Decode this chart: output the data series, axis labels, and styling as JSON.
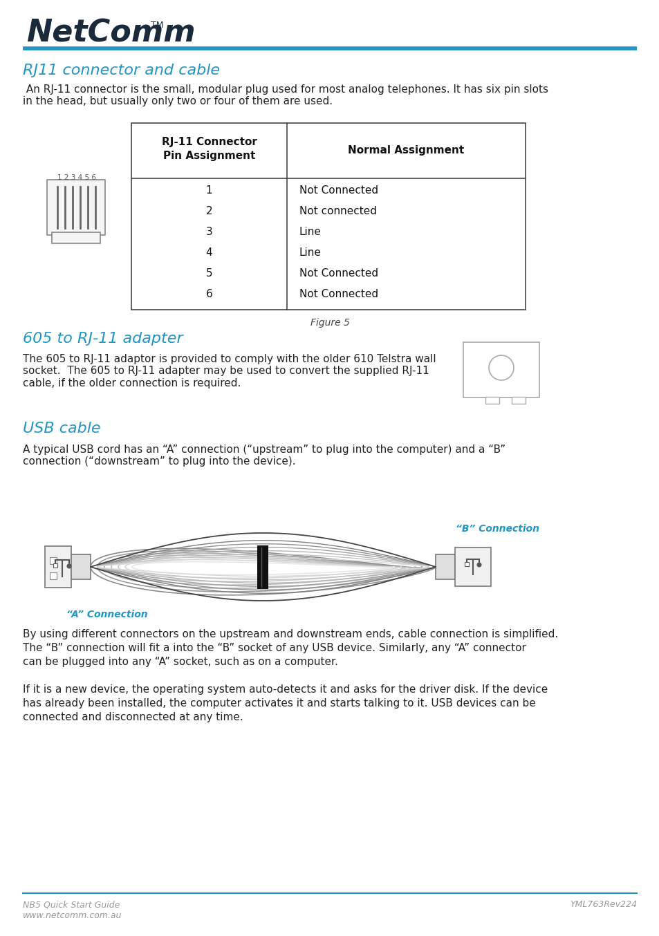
{
  "bg_color": "#ffffff",
  "header_line_color": "#2196C4",
  "logo_color": "#1b2a3a",
  "section1_title": "RJ11 connector and cable",
  "section1_title_color": "#2196C4",
  "section1_body": " An RJ-11 connector is the small, modular plug used for most analog telephones. It has six pin slots\nin the head, but usually only two or four of them are used.",
  "table_header1a": "RJ-11 Connector",
  "table_header1b": "Pin Assignment",
  "table_header2": "Normal Assignment",
  "table_pins": [
    "1",
    "2",
    "3",
    "4",
    "5",
    "6"
  ],
  "table_assignments": [
    "Not Connected",
    "Not connected",
    "Line",
    "Line",
    "Not Connected",
    "Not Connected"
  ],
  "figure_caption": "Figure 5",
  "section2_title": "605 to RJ-11 adapter",
  "section2_title_color": "#2196C4",
  "section2_body": "The 605 to RJ-11 adaptor is provided to comply with the older 610 Telstra wall\nsocket.  The 605 to RJ-11 adapter may be used to convert the supplied RJ-11\ncable, if the older connection is required.",
  "section3_title": "USB cable",
  "section3_title_color": "#2196C4",
  "section3_body": "A typical USB cord has an “A” connection (“upstream” to plug into the computer) and a “B”\nconnection (“downstream” to plug into the device).",
  "usb_label_a": "“A” Connection",
  "usb_label_b": "“B” Connection",
  "usb_label_color": "#2196C4",
  "section4_body1": "By using different connectors on the upstream and downstream ends, cable connection is simplified.\nThe “B” connection will fit a into the “B” socket of any USB device. Similarly, any “A” connector\ncan be plugged into any “A” socket, such as on a computer.",
  "section4_body2": "If it is a new device, the operating system auto-detects it and asks for the driver disk. If the device\nhas already been installed, the computer activates it and starts talking to it. USB devices can be\nconnected and disconnected at any time.",
  "footer_left1": "NB5 Quick Start Guide",
  "footer_left2": "www.netcomm.com.au",
  "footer_right": "YML763Rev224",
  "footer_color": "#999999",
  "footer_line_color": "#2196C4"
}
